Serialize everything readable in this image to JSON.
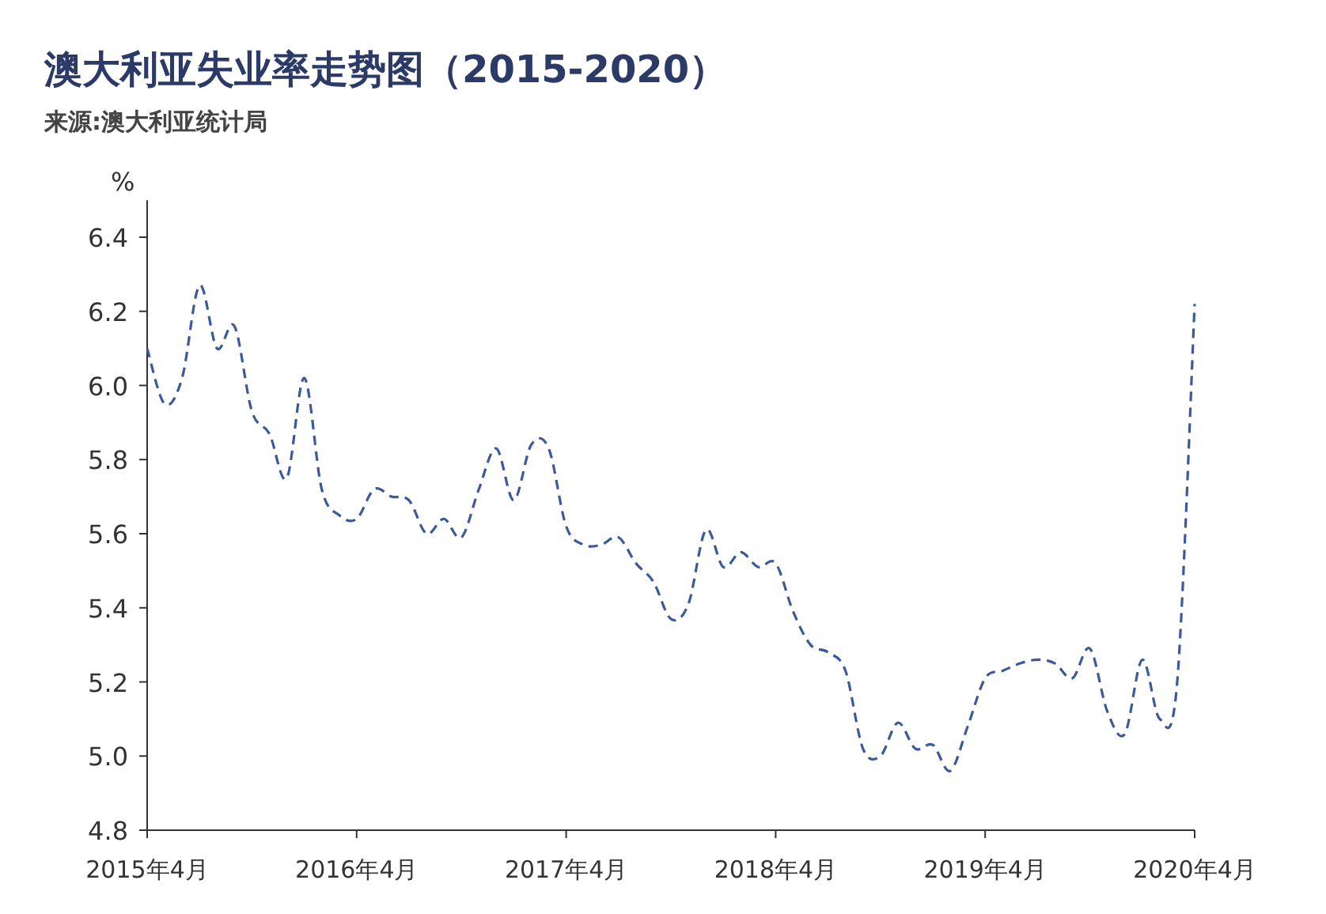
{
  "chart_data": {
    "type": "line",
    "title": "澳大利亚失业率走势图（2015-2020）",
    "subtitle": "来源:澳大利亚统计局",
    "ylabel": "%",
    "x": [
      "2015-04",
      "2015-05",
      "2015-06",
      "2015-07",
      "2015-08",
      "2015-09",
      "2015-10",
      "2015-11",
      "2015-12",
      "2016-01",
      "2016-02",
      "2016-03",
      "2016-04",
      "2016-05",
      "2016-06",
      "2016-07",
      "2016-08",
      "2016-09",
      "2016-10",
      "2016-11",
      "2016-12",
      "2017-01",
      "2017-02",
      "2017-03",
      "2017-04",
      "2017-05",
      "2017-06",
      "2017-07",
      "2017-08",
      "2017-09",
      "2017-10",
      "2017-11",
      "2017-12",
      "2018-01",
      "2018-02",
      "2018-03",
      "2018-04",
      "2018-05",
      "2018-06",
      "2018-07",
      "2018-08",
      "2018-09",
      "2018-10",
      "2018-11",
      "2018-12",
      "2019-01",
      "2019-02",
      "2019-03",
      "2019-04",
      "2019-05",
      "2019-06",
      "2019-07",
      "2019-08",
      "2019-09",
      "2019-10",
      "2019-11",
      "2019-12",
      "2020-01",
      "2020-02",
      "2020-03",
      "2020-04"
    ],
    "series": [
      {
        "color": "#3a5a9c",
        "line_style": "dashed",
        "values": [
          6.1,
          5.95,
          6.02,
          6.27,
          6.1,
          6.16,
          5.93,
          5.87,
          5.75,
          6.02,
          5.72,
          5.65,
          5.64,
          5.72,
          5.7,
          5.69,
          5.6,
          5.64,
          5.59,
          5.72,
          5.83,
          5.69,
          5.84,
          5.83,
          5.62,
          5.57,
          5.57,
          5.59,
          5.52,
          5.47,
          5.37,
          5.41,
          5.61,
          5.51,
          5.55,
          5.51,
          5.52,
          5.39,
          5.3,
          5.28,
          5.23,
          5.02,
          5.0,
          5.09,
          5.02,
          5.03,
          4.96,
          5.08,
          5.21,
          5.23,
          5.25,
          5.26,
          5.25,
          5.21,
          5.29,
          5.12,
          5.06,
          5.26,
          5.1,
          5.2,
          6.22
        ]
      }
    ],
    "xlim": [
      "2015-04",
      "2020-04"
    ],
    "xticks": [
      {
        "value": "2015-04",
        "label": "2015年4月"
      },
      {
        "value": "2016-04",
        "label": "2016年4月"
      },
      {
        "value": "2017-04",
        "label": "2017年4月"
      },
      {
        "value": "2018-04",
        "label": "2018年4月"
      },
      {
        "value": "2019-04",
        "label": "2019年4月"
      },
      {
        "value": "2020-04",
        "label": "2020年4月"
      }
    ],
    "ylim": [
      4.8,
      6.5
    ],
    "yticks": [
      4.8,
      {
        "value": 5,
        "label": "5.0"
      },
      5.2,
      5.4,
      5.6,
      5.8,
      {
        "value": 6,
        "label": "6.0"
      },
      6.2,
      6.4
    ],
    "grid": false,
    "marker": "none"
  }
}
